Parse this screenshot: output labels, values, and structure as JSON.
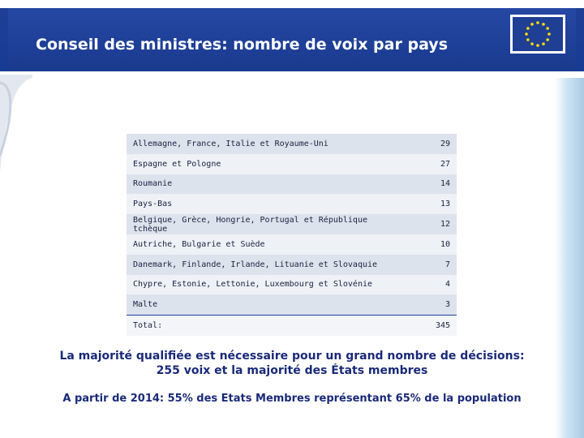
{
  "slide": {
    "title": "Conseil des ministres: nombre de voix par pays",
    "logo_icon": "eu-flag-icon",
    "colors": {
      "header": "#1f3f95",
      "flag_blue": "#1f3f95",
      "flag_stars": "#ffdd00",
      "text": "#1a2a78"
    }
  },
  "table": {
    "rows": [
      {
        "countries": "Allemagne, France, Italie et Royaume-Uni",
        "votes": "29"
      },
      {
        "countries": "Espagne et Pologne",
        "votes": "27"
      },
      {
        "countries": "Roumanie",
        "votes": "14"
      },
      {
        "countries": "Pays-Bas",
        "votes": "13"
      },
      {
        "countries": "Belgique, Grèce, Hongrie, Portugal et République tchèque",
        "votes": "12"
      },
      {
        "countries": "Autriche, Bulgarie et Suède",
        "votes": "10"
      },
      {
        "countries": "Danemark, Finlande, Irlande, Lituanie et Slovaquie",
        "votes": "7"
      },
      {
        "countries": "Chypre, Estonie, Lettonie, Luxembourg et Slovénie",
        "votes": "4"
      },
      {
        "countries": "Malte",
        "votes": "3"
      }
    ],
    "total_label": "Total:",
    "total_value": "345"
  },
  "notes": {
    "majority_line1": "La majorité qualifiée est nécessaire pour un grand nombre de décisions:",
    "majority_line2": "255 voix et la majorité des États membres",
    "from_2014": "A partir de 2014: 55% des Etats Membres représentant 65% de la population"
  }
}
